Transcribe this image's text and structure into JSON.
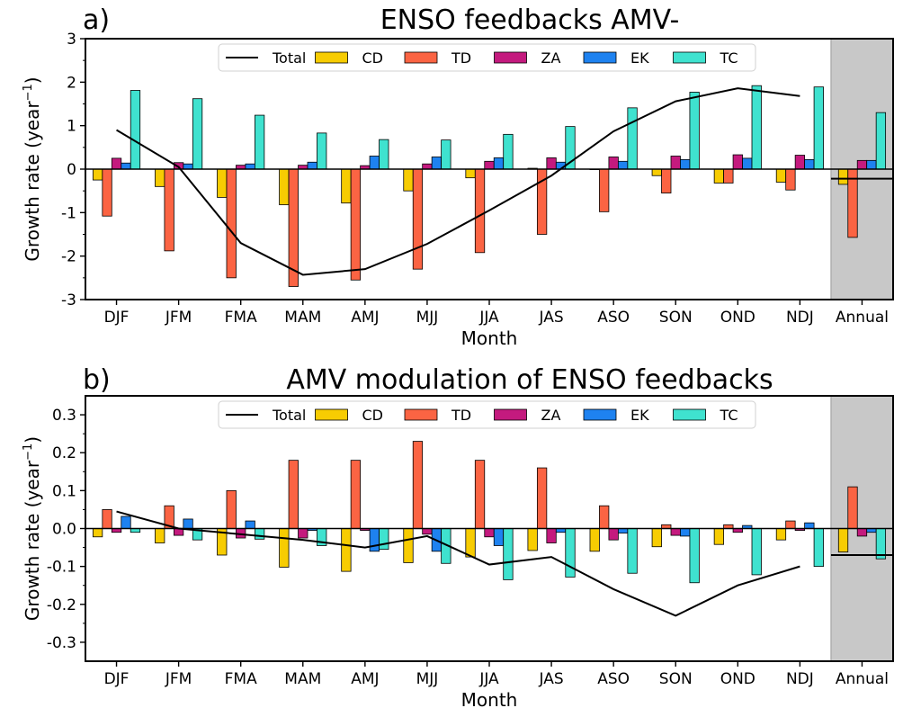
{
  "figure": {
    "background": "#ffffff",
    "annual_shade_color": "#c8c8c8",
    "series_colors": {
      "Total": "#000000",
      "CD": "#f7cc02",
      "TD": "#fb6443",
      "ZA": "#c41a7e",
      "EK": "#1e82f0",
      "TC": "#3fe2cf"
    }
  },
  "chart_data": [
    {
      "type": "bar",
      "panel_label": "a)",
      "title": "ENSO feedbacks AMV-",
      "xlabel": "Month",
      "ylabel": "Growth rate (year",
      "ylabel_sup": "−1",
      "ylabel_close": ")",
      "categories": [
        "DJF",
        "JFM",
        "FMA",
        "MAM",
        "AMJ",
        "MJJ",
        "JJA",
        "JAS",
        "ASO",
        "SON",
        "OND",
        "NDJ",
        "Annual"
      ],
      "ylim": [
        -3,
        3
      ],
      "yticks": [
        -3,
        -2,
        -1,
        0,
        1,
        2,
        3
      ],
      "ytick_labels": [
        "-3",
        "-2",
        "-1",
        "0",
        "1",
        "2",
        "3"
      ],
      "legend_placement": "top-center",
      "annual_shaded": true,
      "total": {
        "name": "Total",
        "values": [
          0.9,
          0.05,
          -1.7,
          -2.43,
          -2.3,
          -1.72,
          -0.95,
          -0.15,
          0.87,
          1.56,
          1.86,
          1.68
        ],
        "annual": -0.22
      },
      "series": [
        {
          "name": "CD",
          "values": [
            -0.25,
            -0.4,
            -0.65,
            -0.82,
            -0.78,
            -0.5,
            -0.2,
            0.02,
            0.0,
            -0.15,
            -0.32,
            -0.3,
            -0.35
          ]
        },
        {
          "name": "TD",
          "values": [
            -1.08,
            -1.88,
            -2.5,
            -2.7,
            -2.55,
            -2.3,
            -1.92,
            -1.5,
            -0.98,
            -0.55,
            -0.32,
            -0.48,
            -1.57
          ]
        },
        {
          "name": "ZA",
          "values": [
            0.25,
            0.15,
            0.09,
            0.09,
            0.08,
            0.12,
            0.18,
            0.26,
            0.28,
            0.3,
            0.33,
            0.32,
            0.2
          ]
        },
        {
          "name": "EK",
          "values": [
            0.14,
            0.12,
            0.12,
            0.16,
            0.3,
            0.28,
            0.26,
            0.16,
            0.18,
            0.22,
            0.25,
            0.22,
            0.2
          ]
        },
        {
          "name": "TC",
          "values": [
            1.81,
            1.62,
            1.24,
            0.83,
            0.68,
            0.67,
            0.8,
            0.98,
            1.41,
            1.77,
            1.92,
            1.89,
            1.3
          ]
        }
      ]
    },
    {
      "type": "bar",
      "panel_label": "b)",
      "title": "AMV modulation of ENSO feedbacks",
      "xlabel": "Month",
      "ylabel": "Growth rate (year",
      "ylabel_sup": "−1",
      "ylabel_close": ")",
      "categories": [
        "DJF",
        "JFM",
        "FMA",
        "MAM",
        "AMJ",
        "MJJ",
        "JJA",
        "JAS",
        "ASO",
        "SON",
        "OND",
        "NDJ",
        "Annual"
      ],
      "ylim": [
        -0.35,
        0.35
      ],
      "yticks": [
        -0.3,
        -0.2,
        -0.1,
        0.0,
        0.1,
        0.2,
        0.3
      ],
      "ytick_labels": [
        "-0.3",
        "-0.2",
        "-0.1",
        "0.0",
        "0.1",
        "0.2",
        "0.3"
      ],
      "legend_placement": "top-center",
      "annual_shaded": true,
      "total": {
        "name": "Total",
        "values": [
          0.045,
          0.0,
          -0.015,
          -0.03,
          -0.05,
          -0.02,
          -0.095,
          -0.075,
          -0.16,
          -0.23,
          -0.15,
          -0.1
        ],
        "annual": -0.07
      },
      "series": [
        {
          "name": "CD",
          "values": [
            -0.022,
            -0.038,
            -0.07,
            -0.102,
            -0.113,
            -0.09,
            -0.075,
            -0.058,
            -0.06,
            -0.048,
            -0.042,
            -0.03,
            -0.062
          ]
        },
        {
          "name": "TD",
          "values": [
            0.05,
            0.06,
            0.1,
            0.18,
            0.18,
            0.23,
            0.18,
            0.16,
            0.06,
            0.01,
            0.01,
            0.02,
            0.11
          ]
        },
        {
          "name": "ZA",
          "values": [
            -0.01,
            -0.018,
            -0.025,
            -0.025,
            -0.005,
            -0.015,
            -0.022,
            -0.038,
            -0.03,
            -0.018,
            -0.01,
            -0.005,
            -0.02
          ]
        },
        {
          "name": "EK",
          "values": [
            0.032,
            0.025,
            0.02,
            -0.005,
            -0.06,
            -0.06,
            -0.045,
            -0.01,
            -0.012,
            -0.02,
            0.008,
            0.015,
            -0.01
          ]
        },
        {
          "name": "TC",
          "values": [
            -0.01,
            -0.03,
            -0.028,
            -0.045,
            -0.055,
            -0.092,
            -0.135,
            -0.128,
            -0.118,
            -0.143,
            -0.122,
            -0.1,
            -0.08
          ]
        }
      ]
    }
  ]
}
